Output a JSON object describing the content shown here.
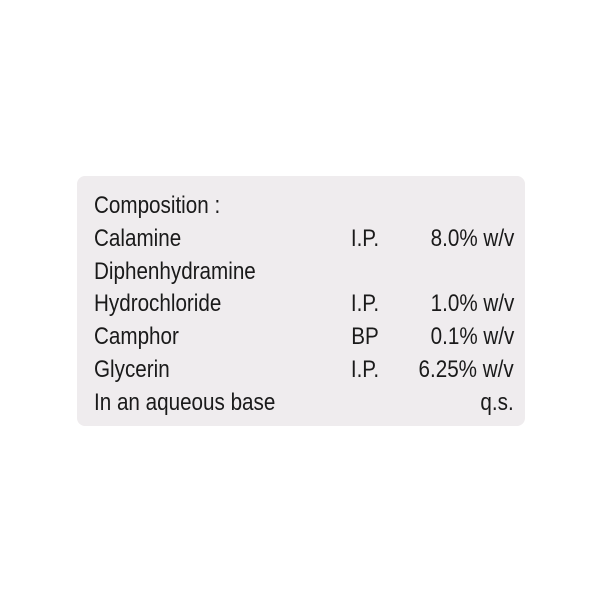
{
  "label": {
    "heading": "Composition :",
    "rows": [
      {
        "name": "Calamine",
        "grade": "I.P.",
        "amount": "8.0% w/v"
      },
      {
        "name": "Diphenhydramine",
        "grade": "",
        "amount": ""
      },
      {
        "name": "Hydrochloride",
        "grade": "I.P.",
        "amount": "1.0% w/v"
      },
      {
        "name": "Camphor",
        "grade": "BP",
        "amount": "0.1% w/v"
      },
      {
        "name": "Glycerin",
        "grade": "I.P.",
        "amount": "6.25% w/v"
      },
      {
        "name": "In an aqueous base",
        "grade": "",
        "amount": "q.s."
      }
    ]
  },
  "colors": {
    "panel": "#efecee",
    "text": "#1a1a1a"
  }
}
